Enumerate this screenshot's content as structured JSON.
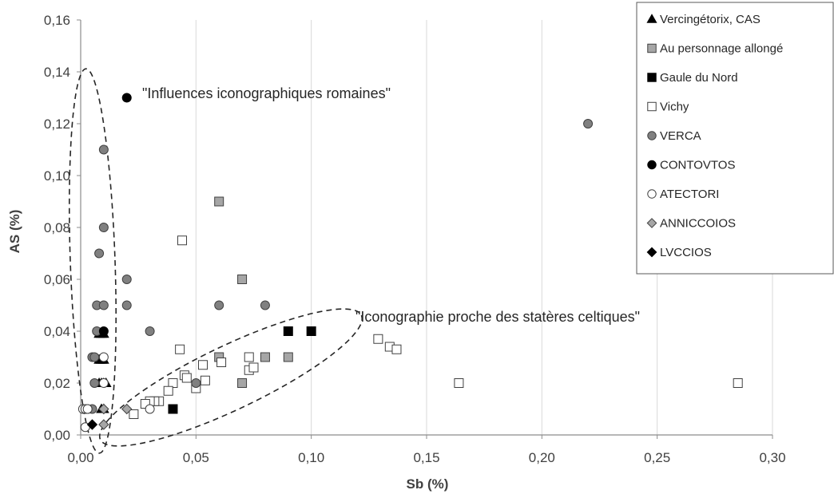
{
  "chart_data": {
    "type": "scatter",
    "xlabel": "Sb (%)",
    "ylabel": "AS (%)",
    "xlim": [
      0,
      0.3
    ],
    "ylim": [
      0,
      0.16
    ],
    "x_ticks": [
      "0,00",
      "0,05",
      "0,10",
      "0,15",
      "0,20",
      "0,25",
      "0,30"
    ],
    "y_ticks": [
      "0,00",
      "0,02",
      "0,04",
      "0,06",
      "0,08",
      "0,10",
      "0,12",
      "0,14",
      "0,16"
    ],
    "grid": "vertical",
    "legend_position": "top-right",
    "annotations": [
      "\"Influences iconographiques romaines\"",
      "\"Iconographie proche des statères celtiques\""
    ],
    "series": [
      {
        "name": "Vercingétorix, CAS",
        "marker": "triangle",
        "fill": "#000000",
        "points": [
          [
            0.008,
            0.039
          ],
          [
            0.009,
            0.039
          ],
          [
            0.01,
            0.039
          ],
          [
            0.008,
            0.029
          ],
          [
            0.009,
            0.029
          ],
          [
            0.01,
            0.029
          ],
          [
            0.008,
            0.02
          ],
          [
            0.009,
            0.02
          ],
          [
            0.01,
            0.02
          ],
          [
            0.011,
            0.02
          ],
          [
            0.009,
            0.01
          ],
          [
            0.01,
            0.01
          ]
        ]
      },
      {
        "name": "Au personnage allongé",
        "marker": "square",
        "fill": "#a6a6a6",
        "points": [
          [
            0.06,
            0.09
          ],
          [
            0.07,
            0.06
          ],
          [
            0.06,
            0.03
          ],
          [
            0.08,
            0.03
          ],
          [
            0.09,
            0.03
          ],
          [
            0.07,
            0.02
          ]
        ]
      },
      {
        "name": "Gaule du Nord",
        "marker": "square",
        "fill": "#000000",
        "points": [
          [
            0.09,
            0.04
          ],
          [
            0.1,
            0.04
          ],
          [
            0.04,
            0.01
          ]
        ]
      },
      {
        "name": "Vichy",
        "marker": "square",
        "fill": "#ffffff",
        "points": [
          [
            0.044,
            0.075
          ],
          [
            0.043,
            0.033
          ],
          [
            0.073,
            0.03
          ],
          [
            0.061,
            0.028
          ],
          [
            0.053,
            0.027
          ],
          [
            0.073,
            0.025
          ],
          [
            0.075,
            0.026
          ],
          [
            0.045,
            0.023
          ],
          [
            0.046,
            0.022
          ],
          [
            0.054,
            0.021
          ],
          [
            0.04,
            0.02
          ],
          [
            0.05,
            0.018
          ],
          [
            0.038,
            0.017
          ],
          [
            0.034,
            0.013
          ],
          [
            0.032,
            0.013
          ],
          [
            0.03,
            0.013
          ],
          [
            0.028,
            0.012
          ],
          [
            0.023,
            0.008
          ],
          [
            0.129,
            0.037
          ],
          [
            0.134,
            0.034
          ],
          [
            0.137,
            0.033
          ],
          [
            0.164,
            0.02
          ],
          [
            0.285,
            0.02
          ]
        ]
      },
      {
        "name": "VERCA",
        "marker": "circle",
        "fill": "#808080",
        "points": [
          [
            0.22,
            0.12
          ],
          [
            0.01,
            0.11
          ],
          [
            0.01,
            0.08
          ],
          [
            0.008,
            0.07
          ],
          [
            0.02,
            0.06
          ],
          [
            0.007,
            0.05
          ],
          [
            0.01,
            0.05
          ],
          [
            0.02,
            0.05
          ],
          [
            0.06,
            0.05
          ],
          [
            0.08,
            0.05
          ],
          [
            0.007,
            0.04
          ],
          [
            0.03,
            0.04
          ],
          [
            0.005,
            0.03
          ],
          [
            0.006,
            0.03
          ],
          [
            0.006,
            0.02
          ],
          [
            0.05,
            0.02
          ],
          [
            0.005,
            0.01
          ],
          [
            0.003,
            0.01
          ]
        ]
      },
      {
        "name": "CONTOVTOS",
        "marker": "circle",
        "fill": "#000000",
        "points": [
          [
            0.02,
            0.13
          ],
          [
            0.01,
            0.04
          ]
        ]
      },
      {
        "name": "ATECTORI",
        "marker": "circle",
        "fill": "#ffffff",
        "points": [
          [
            0.01,
            0.03
          ],
          [
            0.01,
            0.02
          ],
          [
            0.03,
            0.01
          ],
          [
            0.001,
            0.01
          ],
          [
            0.002,
            0.01
          ],
          [
            0.003,
            0.01
          ],
          [
            0.002,
            0.003
          ]
        ]
      },
      {
        "name": "ANNICCOIOS",
        "marker": "diamond",
        "fill": "#a6a6a6",
        "points": [
          [
            0.02,
            0.01
          ],
          [
            0.01,
            0.01
          ],
          [
            0.01,
            0.004
          ]
        ]
      },
      {
        "name": "LVCCIOS",
        "marker": "diamond",
        "fill": "#000000",
        "points": [
          [
            0.005,
            0.004
          ]
        ]
      }
    ]
  }
}
